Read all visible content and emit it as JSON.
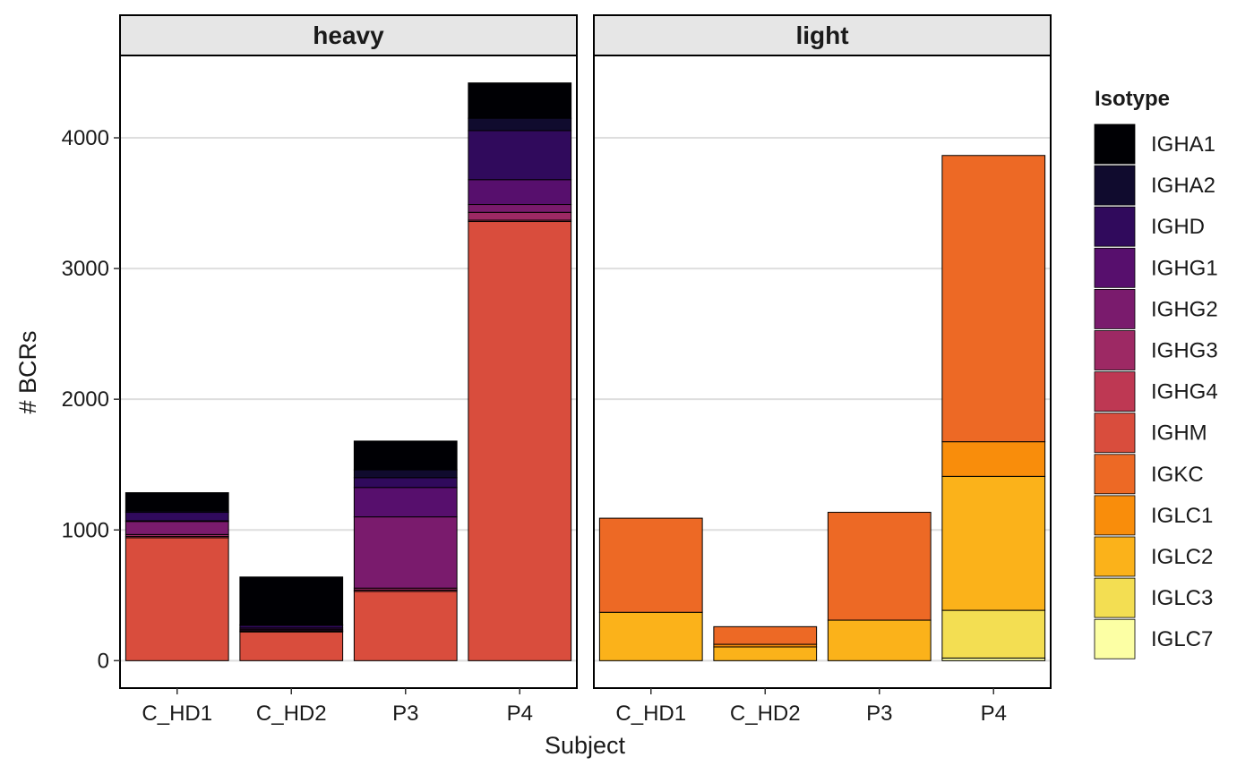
{
  "chart_data": {
    "type": "bar",
    "stacked": true,
    "xlabel": "Subject",
    "ylabel": "# BCRs",
    "ylim": [
      -210,
      4630
    ],
    "yticks": [
      0,
      1000,
      2000,
      3000,
      4000
    ],
    "grid": "horizontal major gridlines",
    "legend": {
      "title": "Isotype",
      "position": "right",
      "entries": [
        "IGHA1",
        "IGHA2",
        "IGHD",
        "IGHG1",
        "IGHG2",
        "IGHG3",
        "IGHG4",
        "IGHM",
        "IGKC",
        "IGLC1",
        "IGLC2",
        "IGLC3",
        "IGLC7"
      ]
    },
    "colors": {
      "IGHA1": "#000004",
      "IGHA2": "#100b2e",
      "IGHD": "#300a5c",
      "IGHG1": "#570f6d",
      "IGHG2": "#7a1b6d",
      "IGHG3": "#9d2964",
      "IGHG4": "#be3853",
      "IGHM": "#d94d3d",
      "IGKC": "#ed6925",
      "IGLC1": "#f98d0b",
      "IGLC2": "#fbb21a",
      "IGLC3": "#f3de52",
      "IGLC7": "#fcffa4"
    },
    "categories": [
      "C_HD1",
      "C_HD2",
      "P3",
      "P4"
    ],
    "stack_order_bottom_to_top": [
      "IGLC7",
      "IGLC3",
      "IGLC2",
      "IGLC1",
      "IGKC",
      "IGHM",
      "IGHG4",
      "IGHG3",
      "IGHG2",
      "IGHG1",
      "IGHD",
      "IGHA2",
      "IGHA1"
    ],
    "panels": [
      {
        "label": "heavy",
        "series": [
          {
            "name": "IGHM",
            "values": [
              940,
              220,
              530,
              3360
            ]
          },
          {
            "name": "IGHG4",
            "values": [
              10,
              5,
              10,
              10
            ]
          },
          {
            "name": "IGHG3",
            "values": [
              15,
              5,
              15,
              60
            ]
          },
          {
            "name": "IGHG2",
            "values": [
              100,
              10,
              545,
              60
            ]
          },
          {
            "name": "IGHG1",
            "values": [
              5,
              10,
              225,
              190
            ]
          },
          {
            "name": "IGHD",
            "values": [
              65,
              20,
              75,
              375
            ]
          },
          {
            "name": "IGHA2",
            "values": [
              10,
              5,
              60,
              95
            ]
          },
          {
            "name": "IGHA1",
            "values": [
              140,
              365,
              220,
              270
            ]
          }
        ]
      },
      {
        "label": "light",
        "series": [
          {
            "name": "IGLC7",
            "values": [
              0,
              0,
              0,
              20
            ]
          },
          {
            "name": "IGLC3",
            "values": [
              0,
              0,
              0,
              365
            ]
          },
          {
            "name": "IGLC2",
            "values": [
              370,
              105,
              310,
              1025
            ]
          },
          {
            "name": "IGLC1",
            "values": [
              0,
              20,
              0,
              265
            ]
          },
          {
            "name": "IGKC",
            "values": [
              720,
              135,
              825,
              2190
            ]
          }
        ]
      }
    ]
  }
}
